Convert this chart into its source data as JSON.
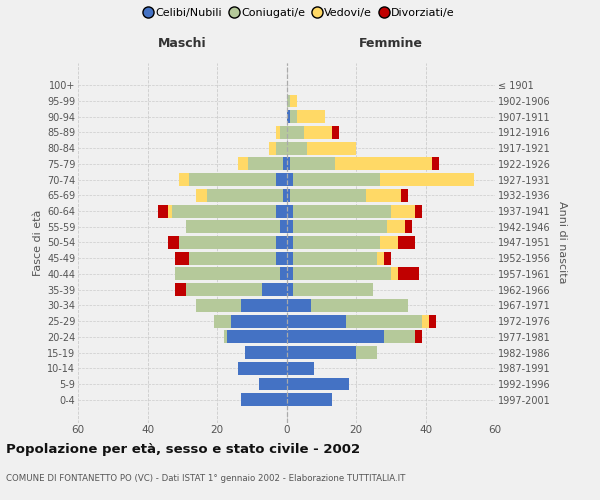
{
  "age_groups": [
    "100+",
    "95-99",
    "90-94",
    "85-89",
    "80-84",
    "75-79",
    "70-74",
    "65-69",
    "60-64",
    "55-59",
    "50-54",
    "45-49",
    "40-44",
    "35-39",
    "30-34",
    "25-29",
    "20-24",
    "15-19",
    "10-14",
    "5-9",
    "0-4"
  ],
  "birth_years": [
    "≤ 1901",
    "1902-1906",
    "1907-1911",
    "1912-1916",
    "1917-1921",
    "1922-1926",
    "1927-1931",
    "1932-1936",
    "1937-1941",
    "1942-1946",
    "1947-1951",
    "1952-1956",
    "1957-1961",
    "1962-1966",
    "1967-1971",
    "1972-1976",
    "1977-1981",
    "1982-1986",
    "1987-1991",
    "1992-1996",
    "1997-2001"
  ],
  "colors": {
    "celibi": "#4472c4",
    "coniugati": "#b5c99a",
    "vedovi": "#ffd966",
    "divorziati": "#c00000"
  },
  "males_celibi": [
    0,
    0,
    0,
    0,
    0,
    1,
    3,
    1,
    3,
    2,
    3,
    3,
    2,
    7,
    13,
    16,
    17,
    12,
    14,
    8,
    13
  ],
  "males_coniugati": [
    0,
    0,
    0,
    2,
    3,
    10,
    25,
    22,
    30,
    27,
    28,
    25,
    30,
    22,
    13,
    5,
    1,
    0,
    0,
    0,
    0
  ],
  "males_vedovi": [
    0,
    0,
    0,
    1,
    2,
    3,
    3,
    3,
    1,
    0,
    0,
    0,
    0,
    0,
    0,
    0,
    0,
    0,
    0,
    0,
    0
  ],
  "males_divorziati": [
    0,
    0,
    0,
    0,
    0,
    0,
    0,
    0,
    3,
    0,
    3,
    4,
    0,
    3,
    0,
    0,
    0,
    0,
    0,
    0,
    0
  ],
  "females_nubili": [
    0,
    0,
    1,
    0,
    0,
    1,
    2,
    1,
    2,
    2,
    2,
    2,
    2,
    2,
    7,
    17,
    28,
    20,
    8,
    18,
    13
  ],
  "females_coniugati": [
    0,
    1,
    2,
    5,
    6,
    13,
    25,
    22,
    28,
    27,
    25,
    24,
    28,
    23,
    28,
    22,
    9,
    6,
    0,
    0,
    0
  ],
  "females_vedovi": [
    0,
    2,
    8,
    8,
    14,
    28,
    27,
    10,
    7,
    5,
    5,
    2,
    2,
    0,
    0,
    2,
    0,
    0,
    0,
    0,
    0
  ],
  "females_divorziati": [
    0,
    0,
    0,
    2,
    0,
    2,
    0,
    2,
    2,
    2,
    5,
    2,
    6,
    0,
    0,
    2,
    2,
    0,
    0,
    0,
    0
  ],
  "xlim": 60,
  "title": "Popolazione per età, sesso e stato civile - 2002",
  "subtitle": "COMUNE DI FONTANETTO PO (VC) - Dati ISTAT 1° gennaio 2002 - Elaborazione TUTTITALIA.IT",
  "label_maschi": "Maschi",
  "label_femmine": "Femmine",
  "ylabel_left": "Fasce di età",
  "ylabel_right": "Anni di nascita",
  "legend_labels": [
    "Celibi/Nubili",
    "Coniugati/e",
    "Vedovi/e",
    "Divorziati/e"
  ],
  "bg_color": "#f0f0f0",
  "grid_color": "#cccccc",
  "text_color": "#555555",
  "title_color": "#111111"
}
